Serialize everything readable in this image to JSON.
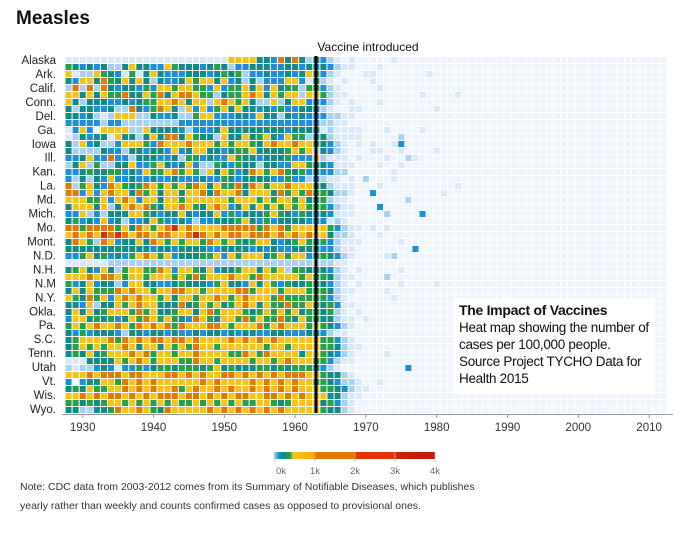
{
  "title": "Measles",
  "annotation": {
    "heading": "The Impact of Vaccines",
    "body": "Heat map showing the number of cases per 100,000 people. Source Project TYCHO Data for Health 2015"
  },
  "note": "Note: CDC data from 2003-2012 comes from its Summary of Notifiable Diseases, which publishes yearly rather than weekly and counts confirmed cases as opposed to provisional ones.",
  "chart_data": {
    "type": "heatmap",
    "title": "Measles",
    "x_range": [
      1928,
      2012
    ],
    "x_ticks": [
      "1930",
      "1940",
      "1950",
      "1960",
      "1970",
      "1980",
      "1990",
      "2000",
      "2010"
    ],
    "row_labels": [
      "Alaska",
      "Ark.",
      "Calif.",
      "Conn.",
      "Del.",
      "Ga.",
      "Iowa",
      "Ill.",
      "Kan.",
      "La.",
      "Md.",
      "Mich.",
      "Mo.",
      "Mont.",
      "N.D.",
      "N.H.",
      "N.M",
      "N.Y.",
      "Okla.",
      "Pa.",
      "S.C.",
      "Tenn.",
      "Utah",
      "Vt.",
      "Wis.",
      "Wyo."
    ],
    "row_count": 51,
    "annotation_line": {
      "year": 1963,
      "label": "Vaccine introduced"
    },
    "legend": {
      "ticks": [
        "0k",
        "1k",
        "2k",
        "3k",
        "4k"
      ],
      "range": [
        0,
        4000
      ]
    },
    "level_note": "levels 0-8 per year, '-' = no data",
    "levels": {
      "0": "#eef5fc",
      "1": "#d9e9f8",
      "2": "#a9d1f1",
      "3": "#1c8fd8",
      "4": "#128b87",
      "5": "#26a049",
      "6": "#f6c419",
      "7": "#e07a00",
      "8": "#dd2b0f",
      "-": "#ffffff"
    },
    "matrix": [
      "11111111111111111111111666644374742432101000001000000000000000000000000000000000000000",
      "54343422464433654443454233444334434343211000100000000000000000000000000000000000000000",
      "61226543151464333444345452334334346532100011000000010000000000000000000000000000000000",
      "43664754646424334656646342423336631421010001000000000000000000000000000000000000000000",
      "27272743443536656655363556463645525532100000100000000000000000000000000000000000000000",
      "66464655744657467765524556764656626652110000000000100001000000000000000000000000000000",
      "64244433434556676466267656422624663332101000100000000000000000000000000000000000000000",
      "42443342274357642636356464434353344421001100000000001000000000000000000000000000000000",
      "44342126662243342256633344364424343332211000000000000000000000000000000000000000000000",
      "33333233222222223333333333333333333322110000000000000000000000000000000000000000000000",
      "13630666622644443233346444444443444412111100010000100000000000000000000000000000000000",
      "12434416442464774654426446456436552342111100000200000000000000000000000000000000000000",
      "42634223666537666766656566546766766543210101001300000000000000000000000000000000000000",
      "42222433244344363466443455644445656243210001100100001000000000000000000000000000000000",
      "33463373324443342553433654434445333621110100010021000000000000000000000000000000000000",
      "24625224463356434632254354424433665443111000100100000000000000000000000000000000000000",
      "33454455343655675652646534765675453433220000001000000000000000000000000000000000000000",
      "32424363343343343334335434444335332321101020001000000000000000000000000000000000000000",
      "72564376545765656576465574765667666542111000100000000001000000000000000000000000000000",
      "77363676647564664667476674666475657554221003000000000100000000000000000000000000000000",
      "66655636763664665666666566656566564552110000000020000000000000000000000000000000000000",
      "46664624676754667654676346465656565553211000300000000000000000000000000000000000000000",
      "33623244466543446434463534445654354343111000020000300000000000000000000000000000000000",
      "45343634233465334323344456435344443331210000000000000000000000000000000000000000000000",
      "77577775647656786766667777757675666665321101010000000000000000000000000000000000000000",
      "67676878767767766787676776777676767664221000100000000000000000000000000000000000000000",
      "47652763446476565665765654566434565453211100000100000000000000000000000000000000000000",
      "44444444444434434444334444343433444433211000000003000000000000000000000000000000000000",
      "33564534356765634445563656664565663454321000012000000000000000000000000000000000000000",
      "11111122222222222222222222222222222222110000000000000000000000000000000000000000000000",
      "45643642566557636654634456646562554443210100000100000000000000000000000000000000000000",
      "66676776566566656575666766576666656554211000020000000000000000000000000000000000000000",
      "53463442366443345444356443646535445443210100000100001000000000000000000000000000000000",
      "46465557676656677665666677566656665554211000010000000000000000000000000000000000000000",
      "65475636767665646656676567666575555553210000001000000000000000000000000000000000000000",
      "44362446567664447456564567646557556545311000000000000000000000000000000000000000000000",
      "46464566657564456646756665456565645545210100000000000000000000000000000000000000000000",
      "36645453465765654376546657565575465544211010000000000000000000000000000000000000000000",
      "56567667657676757666776566675676665654321000000000000000000000000000000000000000000000",
      "43534443244344343343443434433443334432110000000000000000000000000000000000000000000000",
      "45666675767677677676666767676766666655321000000000000000000000000000000000000000000000",
      "45656566764664656576656666665665666655421100000000000000000000000000000000000000000000",
      "45464566676756656676666557657666646654321000010000000000000000000000000000000000000000",
      "11144446567656665576656666566567666553211000000000000000000000000000000000000000000000",
      "21223431335345545554564544455454555432100000000030000000000000000000000000000000000000",
      "66676777677666776767667767676767776654421000000000000000000000000000000000000000000000",
      "3-344665767676666667676666767676766554322100100000000000000000000000000000000000000000",
      "45465566767676675676676766767676766655432110000000000000000000000000000000000000000000",
      "66767677676767776776767677667767676664421100000000000000000000000000000000000000000000",
      "55454566565656565565656565566545666645321000000000000000000000000000000000000000000000",
      "44224457667654766666767676767676666654421000000000000000000000000000000000000000000000"
    ]
  }
}
